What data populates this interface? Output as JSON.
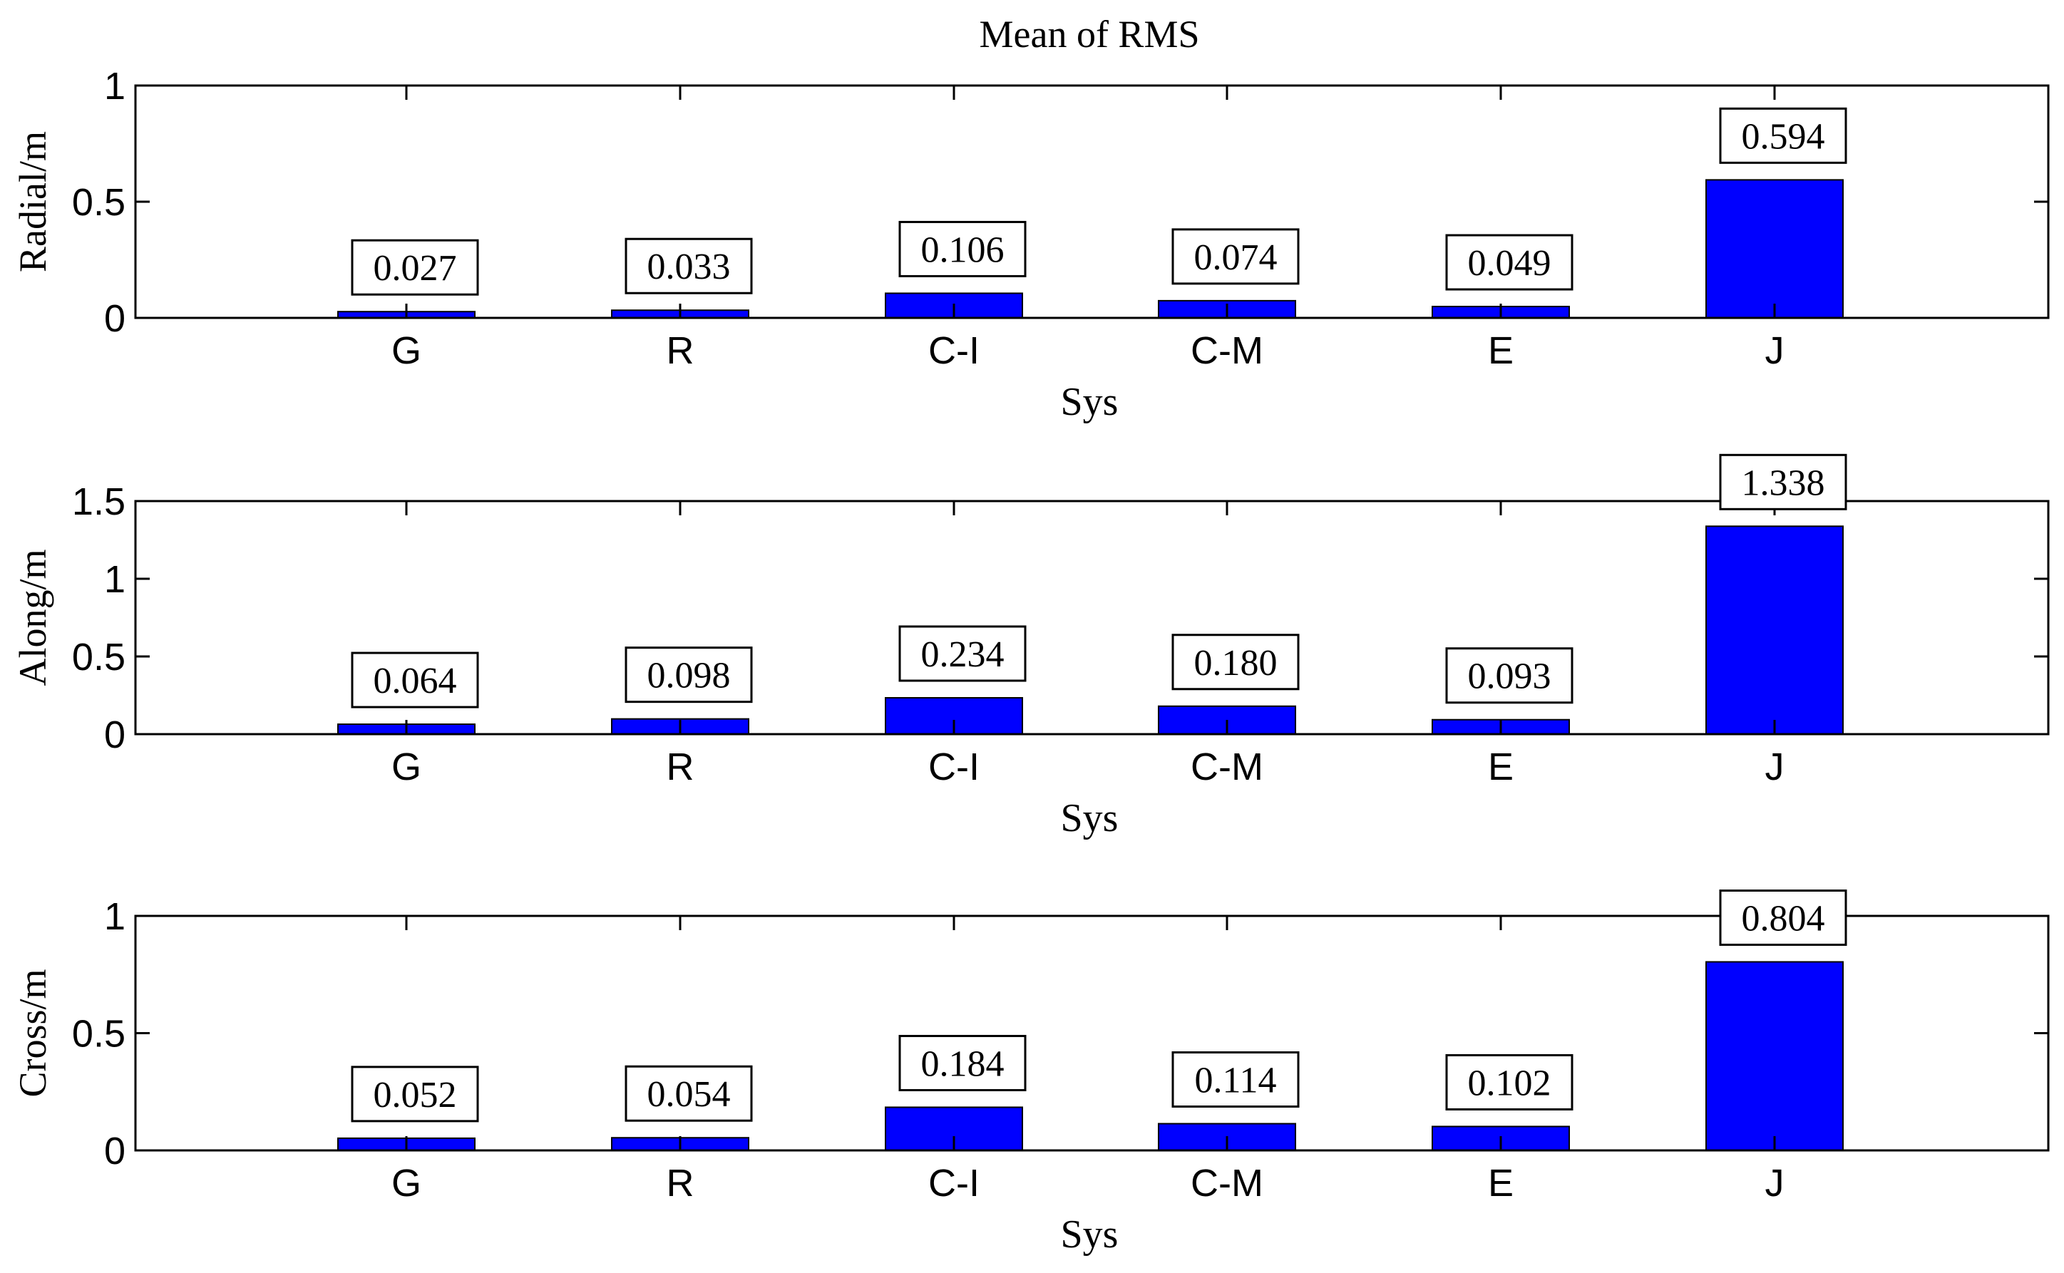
{
  "title": "Mean of RMS",
  "colors": {
    "bar": "#0000FF",
    "axis": "#000000",
    "background": "#FFFFFF"
  },
  "chart_data": [
    {
      "type": "bar",
      "title": "Mean of RMS",
      "xlabel": "Sys",
      "ylabel": "Radial/m",
      "categories": [
        "G",
        "R",
        "C-I",
        "C-M",
        "E",
        "J"
      ],
      "values": [
        0.027,
        0.033,
        0.106,
        0.074,
        0.049,
        0.594
      ],
      "value_labels": [
        "0.027",
        "0.033",
        "0.106",
        "0.074",
        "0.049",
        "0.594"
      ],
      "ylim": [
        0,
        1
      ],
      "yticks": [
        0,
        0.5,
        1
      ],
      "ytick_labels": [
        "0",
        "0.5",
        "1"
      ],
      "grid": false
    },
    {
      "type": "bar",
      "xlabel": "Sys",
      "ylabel": "Along/m",
      "categories": [
        "G",
        "R",
        "C-I",
        "C-M",
        "E",
        "J"
      ],
      "values": [
        0.064,
        0.098,
        0.234,
        0.18,
        0.093,
        1.338
      ],
      "value_labels": [
        "0.064",
        "0.098",
        "0.234",
        "0.180",
        "0.093",
        "1.338"
      ],
      "ylim": [
        0,
        1.5
      ],
      "yticks": [
        0,
        0.5,
        1,
        1.5
      ],
      "ytick_labels": [
        "0",
        "0.5",
        "1",
        "1.5"
      ],
      "grid": false
    },
    {
      "type": "bar",
      "xlabel": "Sys",
      "ylabel": "Cross/m",
      "categories": [
        "G",
        "R",
        "C-I",
        "C-M",
        "E",
        "J"
      ],
      "values": [
        0.052,
        0.054,
        0.184,
        0.114,
        0.102,
        0.804
      ],
      "value_labels": [
        "0.052",
        "0.054",
        "0.184",
        "0.114",
        "0.102",
        "0.804"
      ],
      "ylim": [
        0,
        1
      ],
      "yticks": [
        0,
        0.5,
        1
      ],
      "ytick_labels": [
        "0",
        "0.5",
        "1"
      ],
      "grid": false
    }
  ]
}
